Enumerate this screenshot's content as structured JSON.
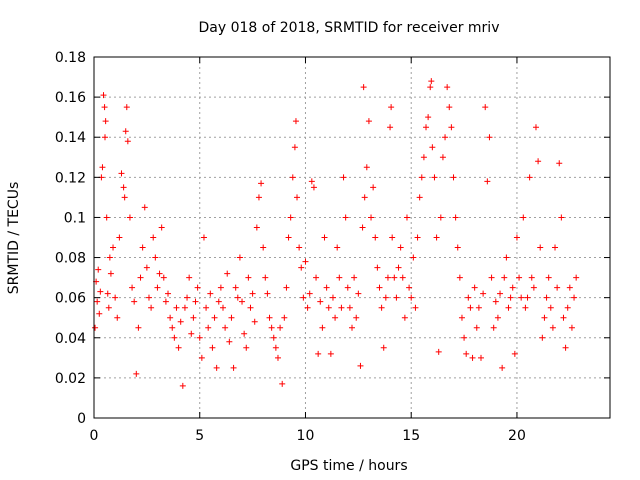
{
  "chart_data": {
    "type": "scatter",
    "title": "Day 018 of 2018, SRMTID for receiver mriv",
    "xlabel": "GPS time / hours",
    "ylabel": "SRMTID / TECUs",
    "xlim": [
      0,
      24.4
    ],
    "ylim": [
      0,
      0.18
    ],
    "xticks": [
      0,
      5,
      10,
      15,
      20
    ],
    "yticks": [
      0,
      0.02,
      0.04,
      0.06,
      0.08,
      0.1,
      0.12,
      0.14,
      0.16,
      0.18
    ],
    "xtick_labels": [
      "0",
      "5",
      "10",
      "15",
      "20"
    ],
    "ytick_labels": [
      "0",
      "0.02",
      "0.04",
      "0.06",
      "0.08",
      "0.1",
      "0.12",
      "0.14",
      "0.16",
      "0.18"
    ],
    "grid": true,
    "marker": "+",
    "color": "#ff0000",
    "series": [
      {
        "points": [
          [
            0.05,
            0.045
          ],
          [
            0.1,
            0.068
          ],
          [
            0.15,
            0.058
          ],
          [
            0.2,
            0.074
          ],
          [
            0.25,
            0.052
          ],
          [
            0.3,
            0.063
          ],
          [
            0.35,
            0.12
          ],
          [
            0.4,
            0.125
          ],
          [
            0.45,
            0.161
          ],
          [
            0.5,
            0.155
          ],
          [
            0.52,
            0.14
          ],
          [
            0.55,
            0.148
          ],
          [
            0.6,
            0.1
          ],
          [
            0.65,
            0.062
          ],
          [
            0.7,
            0.055
          ],
          [
            0.75,
            0.08
          ],
          [
            0.8,
            0.072
          ],
          [
            0.9,
            0.085
          ],
          [
            1.0,
            0.06
          ],
          [
            1.1,
            0.05
          ],
          [
            1.2,
            0.09
          ],
          [
            1.3,
            0.122
          ],
          [
            1.4,
            0.115
          ],
          [
            1.45,
            0.11
          ],
          [
            1.5,
            0.143
          ],
          [
            1.55,
            0.155
          ],
          [
            1.6,
            0.138
          ],
          [
            1.7,
            0.1
          ],
          [
            1.8,
            0.065
          ],
          [
            1.9,
            0.058
          ],
          [
            2.0,
            0.022
          ],
          [
            2.1,
            0.045
          ],
          [
            2.2,
            0.07
          ],
          [
            2.3,
            0.085
          ],
          [
            2.4,
            0.105
          ],
          [
            2.5,
            0.075
          ],
          [
            2.6,
            0.06
          ],
          [
            2.7,
            0.055
          ],
          [
            2.8,
            0.09
          ],
          [
            2.9,
            0.08
          ],
          [
            3.0,
            0.065
          ],
          [
            3.1,
            0.072
          ],
          [
            3.2,
            0.095
          ],
          [
            3.3,
            0.07
          ],
          [
            3.4,
            0.058
          ],
          [
            3.5,
            0.062
          ],
          [
            3.6,
            0.05
          ],
          [
            3.7,
            0.045
          ],
          [
            3.8,
            0.04
          ],
          [
            3.9,
            0.055
          ],
          [
            4.0,
            0.035
          ],
          [
            4.1,
            0.048
          ],
          [
            4.2,
            0.016
          ],
          [
            4.3,
            0.055
          ],
          [
            4.4,
            0.06
          ],
          [
            4.5,
            0.07
          ],
          [
            4.6,
            0.042
          ],
          [
            4.7,
            0.05
          ],
          [
            4.8,
            0.058
          ],
          [
            4.9,
            0.065
          ],
          [
            5.0,
            0.04
          ],
          [
            5.1,
            0.03
          ],
          [
            5.2,
            0.09
          ],
          [
            5.3,
            0.055
          ],
          [
            5.4,
            0.045
          ],
          [
            5.5,
            0.062
          ],
          [
            5.6,
            0.035
          ],
          [
            5.7,
            0.05
          ],
          [
            5.8,
            0.025
          ],
          [
            5.9,
            0.058
          ],
          [
            6.0,
            0.065
          ],
          [
            6.1,
            0.055
          ],
          [
            6.2,
            0.045
          ],
          [
            6.3,
            0.072
          ],
          [
            6.4,
            0.038
          ],
          [
            6.5,
            0.05
          ],
          [
            6.6,
            0.025
          ],
          [
            6.7,
            0.065
          ],
          [
            6.8,
            0.06
          ],
          [
            6.9,
            0.08
          ],
          [
            7.0,
            0.058
          ],
          [
            7.1,
            0.042
          ],
          [
            7.2,
            0.035
          ],
          [
            7.3,
            0.07
          ],
          [
            7.4,
            0.055
          ],
          [
            7.5,
            0.062
          ],
          [
            7.6,
            0.048
          ],
          [
            7.7,
            0.095
          ],
          [
            7.8,
            0.11
          ],
          [
            7.9,
            0.117
          ],
          [
            8.0,
            0.085
          ],
          [
            8.1,
            0.07
          ],
          [
            8.2,
            0.062
          ],
          [
            8.3,
            0.05
          ],
          [
            8.4,
            0.045
          ],
          [
            8.5,
            0.04
          ],
          [
            8.6,
            0.035
          ],
          [
            8.7,
            0.03
          ],
          [
            8.8,
            0.045
          ],
          [
            8.9,
            0.017
          ],
          [
            9.0,
            0.05
          ],
          [
            9.1,
            0.065
          ],
          [
            9.2,
            0.09
          ],
          [
            9.3,
            0.1
          ],
          [
            9.4,
            0.12
          ],
          [
            9.5,
            0.135
          ],
          [
            9.55,
            0.148
          ],
          [
            9.6,
            0.11
          ],
          [
            9.7,
            0.085
          ],
          [
            9.8,
            0.075
          ],
          [
            9.9,
            0.06
          ],
          [
            10.0,
            0.078
          ],
          [
            10.1,
            0.055
          ],
          [
            10.2,
            0.062
          ],
          [
            10.3,
            0.118
          ],
          [
            10.4,
            0.115
          ],
          [
            10.5,
            0.07
          ],
          [
            10.6,
            0.032
          ],
          [
            10.7,
            0.058
          ],
          [
            10.8,
            0.045
          ],
          [
            10.9,
            0.09
          ],
          [
            11.0,
            0.065
          ],
          [
            11.1,
            0.055
          ],
          [
            11.2,
            0.032
          ],
          [
            11.3,
            0.06
          ],
          [
            11.4,
            0.05
          ],
          [
            11.5,
            0.085
          ],
          [
            11.6,
            0.07
          ],
          [
            11.7,
            0.055
          ],
          [
            11.8,
            0.12
          ],
          [
            11.9,
            0.1
          ],
          [
            12.0,
            0.065
          ],
          [
            12.1,
            0.055
          ],
          [
            12.2,
            0.045
          ],
          [
            12.3,
            0.07
          ],
          [
            12.4,
            0.05
          ],
          [
            12.5,
            0.062
          ],
          [
            12.6,
            0.026
          ],
          [
            12.7,
            0.095
          ],
          [
            12.75,
            0.165
          ],
          [
            12.8,
            0.11
          ],
          [
            12.9,
            0.125
          ],
          [
            13.0,
            0.148
          ],
          [
            13.1,
            0.1
          ],
          [
            13.2,
            0.115
          ],
          [
            13.3,
            0.09
          ],
          [
            13.4,
            0.075
          ],
          [
            13.5,
            0.065
          ],
          [
            13.6,
            0.055
          ],
          [
            13.7,
            0.035
          ],
          [
            13.8,
            0.06
          ],
          [
            13.9,
            0.07
          ],
          [
            14.0,
            0.145
          ],
          [
            14.05,
            0.155
          ],
          [
            14.1,
            0.09
          ],
          [
            14.2,
            0.07
          ],
          [
            14.3,
            0.06
          ],
          [
            14.4,
            0.075
          ],
          [
            14.5,
            0.085
          ],
          [
            14.6,
            0.07
          ],
          [
            14.7,
            0.05
          ],
          [
            14.8,
            0.1
          ],
          [
            14.9,
            0.065
          ],
          [
            15.0,
            0.06
          ],
          [
            15.1,
            0.08
          ],
          [
            15.2,
            0.055
          ],
          [
            15.3,
            0.09
          ],
          [
            15.4,
            0.11
          ],
          [
            15.5,
            0.12
          ],
          [
            15.6,
            0.13
          ],
          [
            15.7,
            0.145
          ],
          [
            15.8,
            0.15
          ],
          [
            15.9,
            0.165
          ],
          [
            15.95,
            0.168
          ],
          [
            16.0,
            0.135
          ],
          [
            16.1,
            0.12
          ],
          [
            16.2,
            0.09
          ],
          [
            16.3,
            0.033
          ],
          [
            16.4,
            0.1
          ],
          [
            16.5,
            0.13
          ],
          [
            16.6,
            0.14
          ],
          [
            16.7,
            0.165
          ],
          [
            16.8,
            0.155
          ],
          [
            16.9,
            0.145
          ],
          [
            17.0,
            0.12
          ],
          [
            17.1,
            0.1
          ],
          [
            17.2,
            0.085
          ],
          [
            17.3,
            0.07
          ],
          [
            17.4,
            0.05
          ],
          [
            17.5,
            0.04
          ],
          [
            17.6,
            0.032
          ],
          [
            17.7,
            0.06
          ],
          [
            17.8,
            0.055
          ],
          [
            17.9,
            0.03
          ],
          [
            18.0,
            0.065
          ],
          [
            18.1,
            0.045
          ],
          [
            18.2,
            0.055
          ],
          [
            18.3,
            0.03
          ],
          [
            18.4,
            0.062
          ],
          [
            18.5,
            0.155
          ],
          [
            18.6,
            0.118
          ],
          [
            18.7,
            0.14
          ],
          [
            18.8,
            0.07
          ],
          [
            18.9,
            0.045
          ],
          [
            19.0,
            0.058
          ],
          [
            19.1,
            0.05
          ],
          [
            19.2,
            0.062
          ],
          [
            19.3,
            0.025
          ],
          [
            19.4,
            0.07
          ],
          [
            19.5,
            0.08
          ],
          [
            19.6,
            0.055
          ],
          [
            19.7,
            0.06
          ],
          [
            19.8,
            0.065
          ],
          [
            19.9,
            0.032
          ],
          [
            20.0,
            0.09
          ],
          [
            20.1,
            0.07
          ],
          [
            20.2,
            0.06
          ],
          [
            20.3,
            0.1
          ],
          [
            20.4,
            0.055
          ],
          [
            20.5,
            0.06
          ],
          [
            20.6,
            0.12
          ],
          [
            20.7,
            0.07
          ],
          [
            20.8,
            0.065
          ],
          [
            20.9,
            0.145
          ],
          [
            21.0,
            0.128
          ],
          [
            21.1,
            0.085
          ],
          [
            21.2,
            0.04
          ],
          [
            21.3,
            0.05
          ],
          [
            21.4,
            0.06
          ],
          [
            21.5,
            0.07
          ],
          [
            21.6,
            0.055
          ],
          [
            21.7,
            0.045
          ],
          [
            21.8,
            0.085
          ],
          [
            21.9,
            0.065
          ],
          [
            22.0,
            0.127
          ],
          [
            22.1,
            0.1
          ],
          [
            22.2,
            0.05
          ],
          [
            22.3,
            0.035
          ],
          [
            22.4,
            0.055
          ],
          [
            22.5,
            0.065
          ],
          [
            22.6,
            0.045
          ],
          [
            22.7,
            0.06
          ],
          [
            22.8,
            0.07
          ]
        ]
      }
    ]
  }
}
